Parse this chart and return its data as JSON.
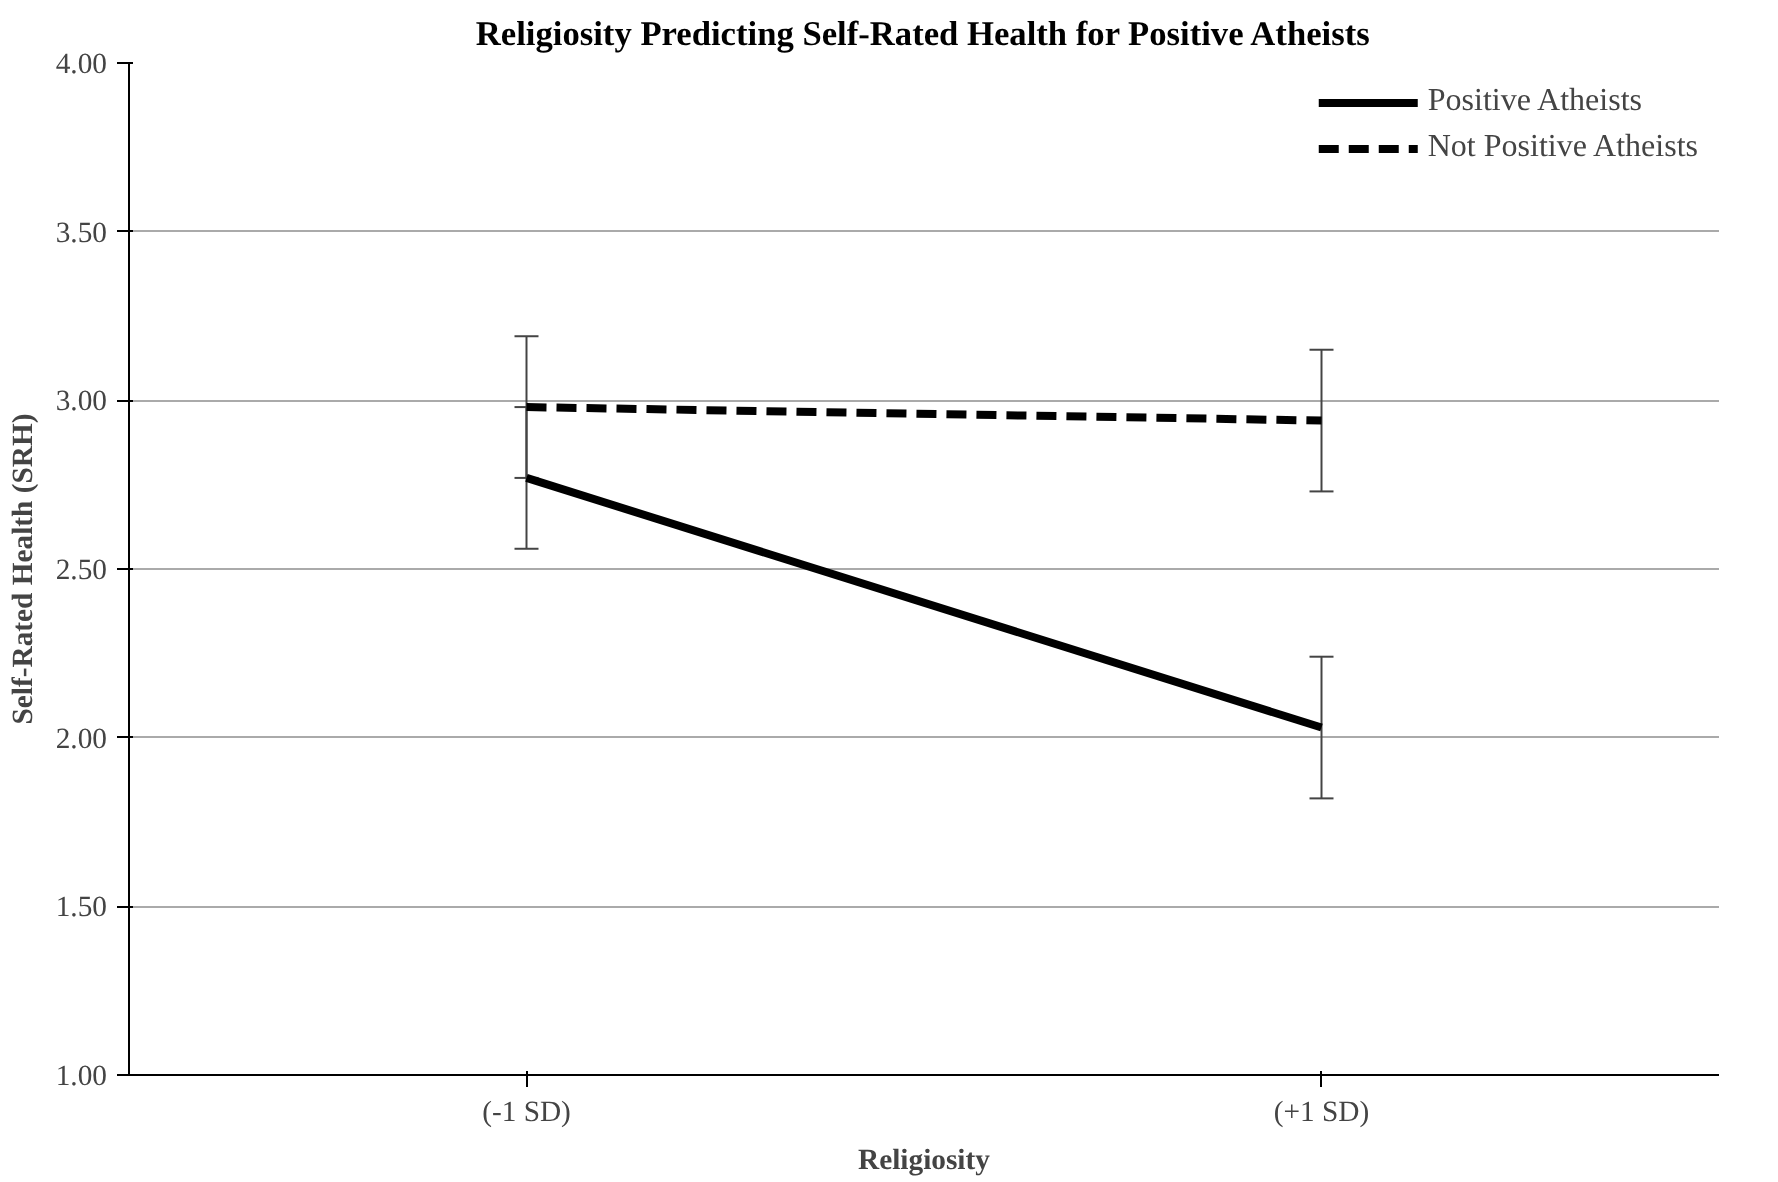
{
  "chart_data": {
    "type": "line",
    "title": "Religiosity Predicting Self-Rated Health for Positive Atheists",
    "xlabel": "Religiosity",
    "ylabel": "Self-Rated Health (SRH)",
    "categories": [
      "(-1 SD)",
      "(+1 SD)"
    ],
    "series": [
      {
        "name": "Positive Atheists",
        "color": "#000000",
        "values": [
          2.77,
          2.03
        ],
        "errors": [
          0.21,
          0.21
        ],
        "line_style": "solid"
      },
      {
        "name": "Not Positive Atheists",
        "color": "#000000",
        "values": [
          2.98,
          2.94
        ],
        "errors": [
          0.21,
          0.21
        ],
        "line_style": "dashed"
      }
    ],
    "ylim": [
      1,
      4
    ],
    "yticks": [
      {
        "value": 1,
        "label": "1.00"
      },
      {
        "value": 1.5,
        "label": "1.50"
      },
      {
        "value": 2,
        "label": "2.00"
      },
      {
        "value": 2.5,
        "label": "2.50"
      },
      {
        "value": 3,
        "label": "3.00"
      },
      {
        "value": 3.5,
        "label": "3.50"
      },
      {
        "value": 4,
        "label": "4.00"
      }
    ],
    "grid": "y",
    "legend": "top right"
  }
}
